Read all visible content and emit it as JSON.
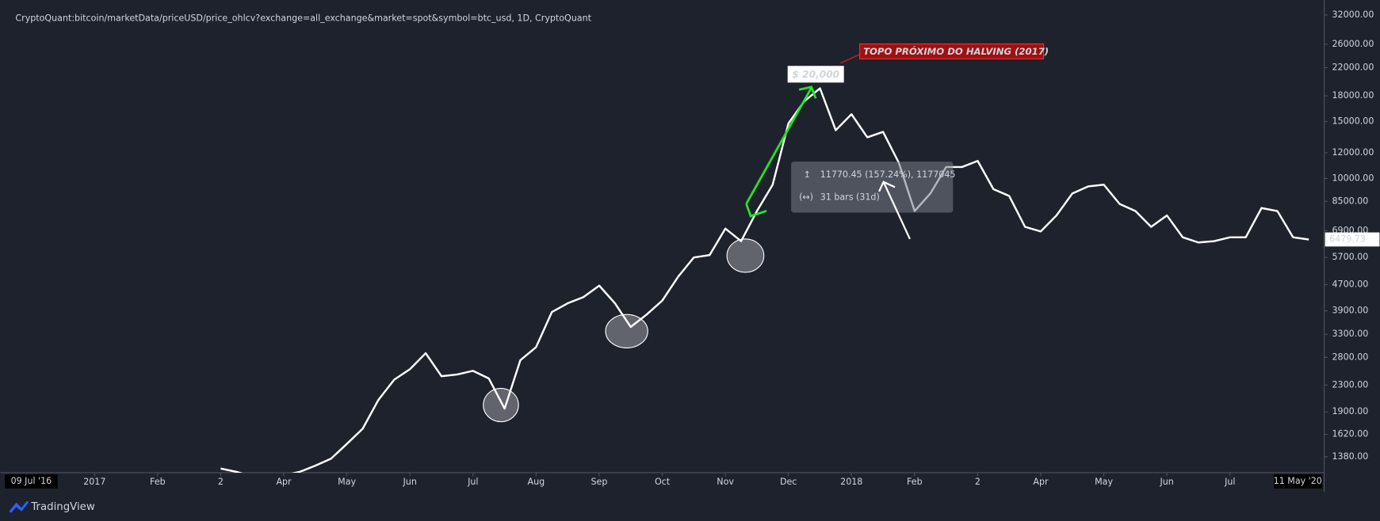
{
  "chart_data": {
    "type": "line",
    "title": "CryptoQuant:bitcoin/marketData/priceUSD/price_ohlcv?exchange=all_exchange&market=spot&symbol=btc_usd, 1D, CryptoQuant",
    "categories": [
      null,
      null,
      null,
      null,
      null,
      null,
      "2017",
      null,
      null,
      null,
      "Feb",
      null,
      null,
      null,
      "2",
      null,
      null,
      null,
      "Apr",
      null,
      null,
      null,
      "May",
      null,
      null,
      null,
      "Jun",
      null,
      null,
      null,
      "Jul",
      null,
      null,
      null,
      "Aug",
      null,
      null,
      null,
      "Sep",
      null,
      null,
      null,
      "Oct",
      null,
      null,
      null,
      "Nov",
      null,
      null,
      null,
      "Dec",
      null,
      null,
      null,
      "2018",
      null,
      null,
      null,
      "Feb",
      null,
      null,
      null,
      "2",
      null,
      null,
      null,
      "Apr",
      null,
      null,
      null,
      "May",
      null,
      null,
      null,
      "Jun",
      null,
      null,
      null,
      "Jul",
      null,
      null,
      null,
      null,
      null
    ],
    "series": [
      {
        "name": "BTC/USD",
        "color": "#ffffff",
        "values": [
          null,
          null,
          null,
          null,
          null,
          null,
          null,
          null,
          null,
          null,
          null,
          null,
          null,
          null,
          1270,
          1240,
          1200,
          1200,
          1210,
          1240,
          1296,
          1363,
          1514,
          1685,
          2069,
          2390,
          2575,
          2885,
          2450,
          2480,
          2545,
          2410,
          1945,
          2745,
          3013,
          3868,
          4116,
          4300,
          4667,
          4116,
          3478,
          3793,
          4195,
          4966,
          5700,
          5800,
          7000,
          6400,
          7930,
          9570,
          14800,
          17300,
          19000,
          14100,
          15800,
          13400,
          13930,
          11190,
          7930,
          8990,
          10850,
          10850,
          11330,
          9270,
          8830,
          7090,
          6860,
          7690,
          8990,
          9450,
          9570,
          8340,
          7930,
          7090,
          7690,
          6580,
          6340,
          6400,
          6580,
          6580,
          8100,
          7930,
          6580,
          6479.73
        ]
      }
    ],
    "last_value_label": "6479.73",
    "ylim": [
      1233,
      35600
    ],
    "log_scale": true,
    "grid": false,
    "yticks": [
      {
        "value": 32000,
        "label": "32000.00"
      },
      {
        "value": 26000,
        "label": "26000.00"
      },
      {
        "value": 22000,
        "label": "22000.00"
      },
      {
        "value": 18000,
        "label": "18000.00"
      },
      {
        "value": 15000,
        "label": "15000.00"
      },
      {
        "value": 12000,
        "label": "12000.00"
      },
      {
        "value": 10000,
        "label": "10000.00"
      },
      {
        "value": 8500,
        "label": "8500.00"
      },
      {
        "value": 6900,
        "label": "6900.00"
      },
      {
        "value": 5700,
        "label": "5700.00"
      },
      {
        "value": 4700,
        "label": "4700.00"
      },
      {
        "value": 3900,
        "label": "3900.00"
      },
      {
        "value": 3300,
        "label": "3300.00"
      },
      {
        "value": 2800,
        "label": "2800.00"
      },
      {
        "value": 2300,
        "label": "2300.00"
      },
      {
        "value": 1900,
        "label": "1900.00"
      },
      {
        "value": 1620,
        "label": "1620.00"
      },
      {
        "value": 1380,
        "label": "1380.00"
      }
    ],
    "x_range_labels": [
      "09 Jul '16",
      "11 May '20"
    ],
    "annotations": {
      "halving": "TOPO PRÓXIMO DO HALVING (2017)",
      "price": "$ 20,000",
      "measure_change": "11770.45 (157.24%), 1177045",
      "measure_bars": "31 bars (31d)"
    },
    "brand": "TradingView"
  }
}
